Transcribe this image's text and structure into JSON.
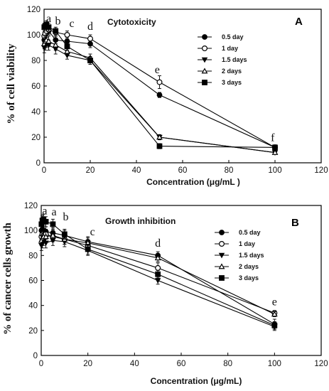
{
  "chart_data": [
    {
      "type": "line",
      "panel_label": "A",
      "title": "Cytotoxicity",
      "xlabel": "Concentration  (μg/mL )",
      "ylabel": "% of cell viability",
      "xlim": [
        0,
        120
      ],
      "ylim": [
        0,
        120
      ],
      "xticks": [
        0,
        20,
        40,
        60,
        80,
        100,
        120
      ],
      "yticks": [
        0,
        20,
        40,
        60,
        80,
        100,
        120
      ],
      "legend_position": "top-right",
      "annotations": [
        {
          "text": "a",
          "x": 2,
          "y": 110
        },
        {
          "text": "b",
          "x": 6,
          "y": 108
        },
        {
          "text": "c",
          "x": 12,
          "y": 106
        },
        {
          "text": "d",
          "x": 20,
          "y": 104
        },
        {
          "text": "e",
          "x": 49,
          "y": 70
        },
        {
          "text": "f",
          "x": 99,
          "y": 17
        }
      ],
      "series": [
        {
          "name": "0.5 day",
          "marker": "circle-filled",
          "x": [
            0.1,
            0.5,
            1,
            2,
            5,
            10,
            20,
            50,
            100
          ],
          "y": [
            96,
            100,
            102,
            103,
            96,
            95,
            93,
            53,
            12
          ],
          "yerr": [
            3,
            3,
            3,
            3,
            3,
            3,
            3,
            2,
            2
          ]
        },
        {
          "name": "1 day",
          "marker": "circle-open",
          "x": [
            0.1,
            0.5,
            1,
            2,
            5,
            10,
            20,
            50,
            100
          ],
          "y": [
            99,
            101,
            103,
            104,
            102,
            100,
            97,
            63,
            12
          ],
          "yerr": [
            3,
            3,
            3,
            3,
            3,
            3,
            3,
            5,
            2
          ]
        },
        {
          "name": "1.5 days",
          "marker": "triangle-down-filled",
          "x": [
            0.1,
            0.5,
            1,
            2,
            5,
            10,
            20,
            50,
            100
          ],
          "y": [
            90,
            92,
            94,
            92,
            89,
            84,
            80,
            20,
            8
          ],
          "yerr": [
            4,
            4,
            4,
            4,
            4,
            3,
            3,
            2,
            1
          ]
        },
        {
          "name": "2 days",
          "marker": "triangle-up-open",
          "x": [
            0.1,
            0.5,
            1,
            2,
            5,
            10,
            20,
            50,
            100
          ],
          "y": [
            93,
            95,
            96,
            95,
            92,
            87,
            82,
            20,
            8
          ],
          "yerr": [
            4,
            4,
            4,
            4,
            4,
            3,
            3,
            2,
            1
          ]
        },
        {
          "name": "3 days",
          "marker": "square-filled",
          "x": [
            0.1,
            0.5,
            1,
            2,
            5,
            10,
            20,
            50,
            100
          ],
          "y": [
            106,
            107,
            108,
            106,
            103,
            91,
            80,
            13,
            12
          ],
          "yerr": [
            3,
            3,
            3,
            3,
            3,
            3,
            3,
            2,
            2
          ]
        }
      ]
    },
    {
      "type": "line",
      "panel_label": "B",
      "title": "Growth inhibition",
      "xlabel": "Concentration  (μg/mL)",
      "ylabel": "% of  cancer cells  growth",
      "xlim": [
        0,
        120
      ],
      "ylim": [
        0,
        120
      ],
      "xticks": [
        0,
        20,
        40,
        60,
        80,
        100,
        120
      ],
      "yticks": [
        0,
        20,
        40,
        60,
        80,
        100,
        120
      ],
      "legend_position": "top-right",
      "annotations": [
        {
          "text": "a",
          "x": 1.5,
          "y": 113
        },
        {
          "text": "a",
          "x": 5.5,
          "y": 112
        },
        {
          "text": "b",
          "x": 10.5,
          "y": 108
        },
        {
          "text": "c",
          "x": 22,
          "y": 96
        },
        {
          "text": "d",
          "x": 50,
          "y": 87
        },
        {
          "text": "e",
          "x": 100,
          "y": 40
        }
      ],
      "series": [
        {
          "name": "0.5 day",
          "marker": "circle-filled",
          "x": [
            0.1,
            0.5,
            1,
            2,
            5,
            10,
            20,
            50,
            100
          ],
          "y": [
            100,
            101,
            100,
            99,
            98,
            96,
            91,
            80,
            25
          ],
          "yerr": [
            4,
            4,
            4,
            4,
            4,
            4,
            4,
            3,
            4
          ]
        },
        {
          "name": "1 day",
          "marker": "circle-open",
          "x": [
            0.1,
            0.5,
            1,
            2,
            5,
            10,
            20,
            50,
            100
          ],
          "y": [
            95,
            97,
            96,
            97,
            95,
            93,
            88,
            70,
            34
          ],
          "yerr": [
            4,
            4,
            4,
            4,
            4,
            4,
            4,
            4,
            2
          ]
        },
        {
          "name": "1.5 days",
          "marker": "triangle-down-filled",
          "x": [
            0.1,
            0.5,
            1,
            2,
            5,
            10,
            20,
            50,
            100
          ],
          "y": [
            88,
            90,
            92,
            90,
            92,
            91,
            84,
            60,
            23
          ],
          "yerr": [
            4,
            4,
            4,
            4,
            4,
            4,
            4,
            3,
            3
          ]
        },
        {
          "name": "2 days",
          "marker": "triangle-up-open",
          "x": [
            0.1,
            0.5,
            1,
            2,
            5,
            10,
            20,
            50,
            100
          ],
          "y": [
            92,
            94,
            95,
            95,
            96,
            93,
            90,
            78,
            33
          ],
          "yerr": [
            4,
            4,
            4,
            4,
            4,
            4,
            4,
            3,
            2
          ]
        },
        {
          "name": "3 days",
          "marker": "square-filled",
          "x": [
            0.1,
            0.5,
            1,
            2,
            5,
            10,
            20,
            50,
            100
          ],
          "y": [
            105,
            108,
            109,
            107,
            105,
            97,
            85,
            65,
            24
          ],
          "yerr": [
            4,
            4,
            4,
            4,
            4,
            4,
            4,
            3,
            3
          ]
        }
      ]
    }
  ]
}
